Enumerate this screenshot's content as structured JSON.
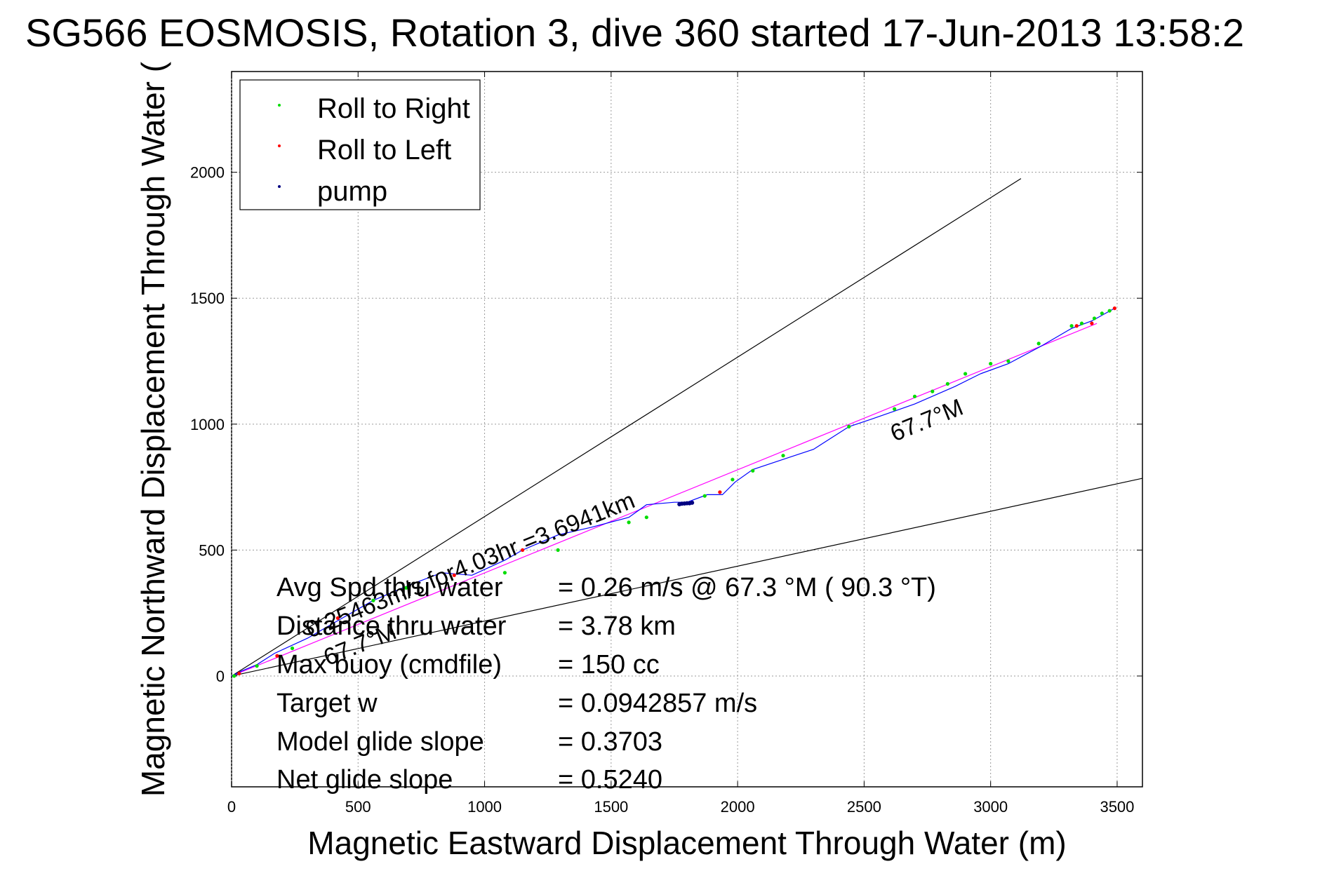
{
  "title": "SG566 EOSMOSIS, Rotation 3, dive 360 started 17-Jun-2013 13:58:2",
  "colors": {
    "roll_right": "#00dd00",
    "roll_left": "#ff0000",
    "pump": "#000080",
    "track": "#0000ff",
    "heading_line": "#ff00ff",
    "reference_lines": "#000000"
  },
  "chart_data": {
    "type": "line",
    "title": "SG566 EOSMOSIS, Rotation 3, dive 360 started 17-Jun-2013 13:58:2",
    "xlabel": "Magnetic Eastward Displacement Through Water (m)",
    "ylabel": "Magnetic Northward Displacement Through Water (",
    "xlim": [
      0,
      3600
    ],
    "ylim": [
      -440,
      2400
    ],
    "xticks": [
      0,
      500,
      1000,
      1500,
      2000,
      2500,
      3000,
      3500
    ],
    "yticks": [
      0,
      500,
      1000,
      1500,
      2000
    ],
    "grid": true,
    "legend_position": "top-left",
    "legend": [
      {
        "label": "Roll to Right",
        "color": "#00dd00",
        "marker": "dot"
      },
      {
        "label": "Roll to Left",
        "color": "#ff0000",
        "marker": "dot"
      },
      {
        "label": "pump",
        "color": "#000080",
        "marker": "dot"
      }
    ],
    "track": {
      "x": [
        0,
        40,
        100,
        170,
        300,
        420,
        560,
        700,
        830,
        950,
        1080,
        1150,
        1290,
        1420,
        1570,
        1640,
        1750,
        1800,
        1880,
        1940,
        1990,
        2060,
        2180,
        2300,
        2440,
        2530,
        2700,
        2860,
        2960,
        3070,
        3200,
        3320,
        3400,
        3490
      ],
      "y": [
        0,
        20,
        45,
        90,
        150,
        220,
        300,
        360,
        410,
        400,
        460,
        500,
        560,
        590,
        630,
        680,
        690,
        690,
        720,
        720,
        770,
        820,
        860,
        900,
        990,
        1020,
        1080,
        1150,
        1200,
        1240,
        1310,
        1380,
        1410,
        1460
      ]
    },
    "heading_line": {
      "x": [
        0,
        3420
      ],
      "y": [
        0,
        1400
      ]
    },
    "reference_lines": [
      {
        "x": [
          0,
          3120
        ],
        "y": [
          0,
          1975
        ]
      },
      {
        "x": [
          0,
          3600
        ],
        "y": [
          0,
          785
        ]
      }
    ],
    "roll_right_points": {
      "x": [
        10,
        100,
        240,
        560,
        690,
        1080,
        1290,
        1570,
        1640,
        1870,
        1980,
        2060,
        2180,
        2440,
        2620,
        2700,
        2770,
        2830,
        2900,
        3000,
        3070,
        3190,
        3320,
        3360,
        3410,
        3440,
        3470
      ],
      "y": [
        0,
        40,
        110,
        300,
        350,
        410,
        500,
        610,
        630,
        715,
        780,
        815,
        875,
        990,
        1060,
        1110,
        1130,
        1160,
        1200,
        1240,
        1250,
        1320,
        1390,
        1400,
        1420,
        1440,
        1450
      ]
    },
    "roll_left_points": {
      "x": [
        30,
        180,
        420,
        880,
        1150,
        1930,
        3340,
        3400,
        3490
      ],
      "y": [
        10,
        80,
        230,
        400,
        500,
        730,
        1390,
        1400,
        1460
      ]
    },
    "pump_points": {
      "x": [
        1770,
        1780,
        1790,
        1800,
        1810,
        1820
      ],
      "y": [
        682,
        684,
        685,
        686,
        686,
        688
      ]
    },
    "annotations": [
      {
        "text": "0.25463m/s for4.03hr =3.6941km",
        "x": 310,
        "y": 150,
        "rotation": -22
      },
      {
        "text": "67.7°M",
        "x": 2620,
        "y": 930,
        "rotation": -22
      },
      {
        "text": "67.7°M",
        "x": 380,
        "y": 40,
        "rotation": -22
      }
    ],
    "stats": [
      {
        "label": "Avg Spd thru water",
        "value": "=  0.26 m/s @  67.3 °M ( 90.3 °T)"
      },
      {
        "label": "Distance thru water",
        "value": "=  3.78 km"
      },
      {
        "label": "Max buoy (cmdfile)",
        "value": "= 150 cc"
      },
      {
        "label": "Target w",
        "value": "= 0.0942857 m/s"
      },
      {
        "label": "Model glide slope",
        "value": "= 0.3703"
      },
      {
        "label": "Net glide slope",
        "value": "= 0.5240"
      }
    ]
  }
}
